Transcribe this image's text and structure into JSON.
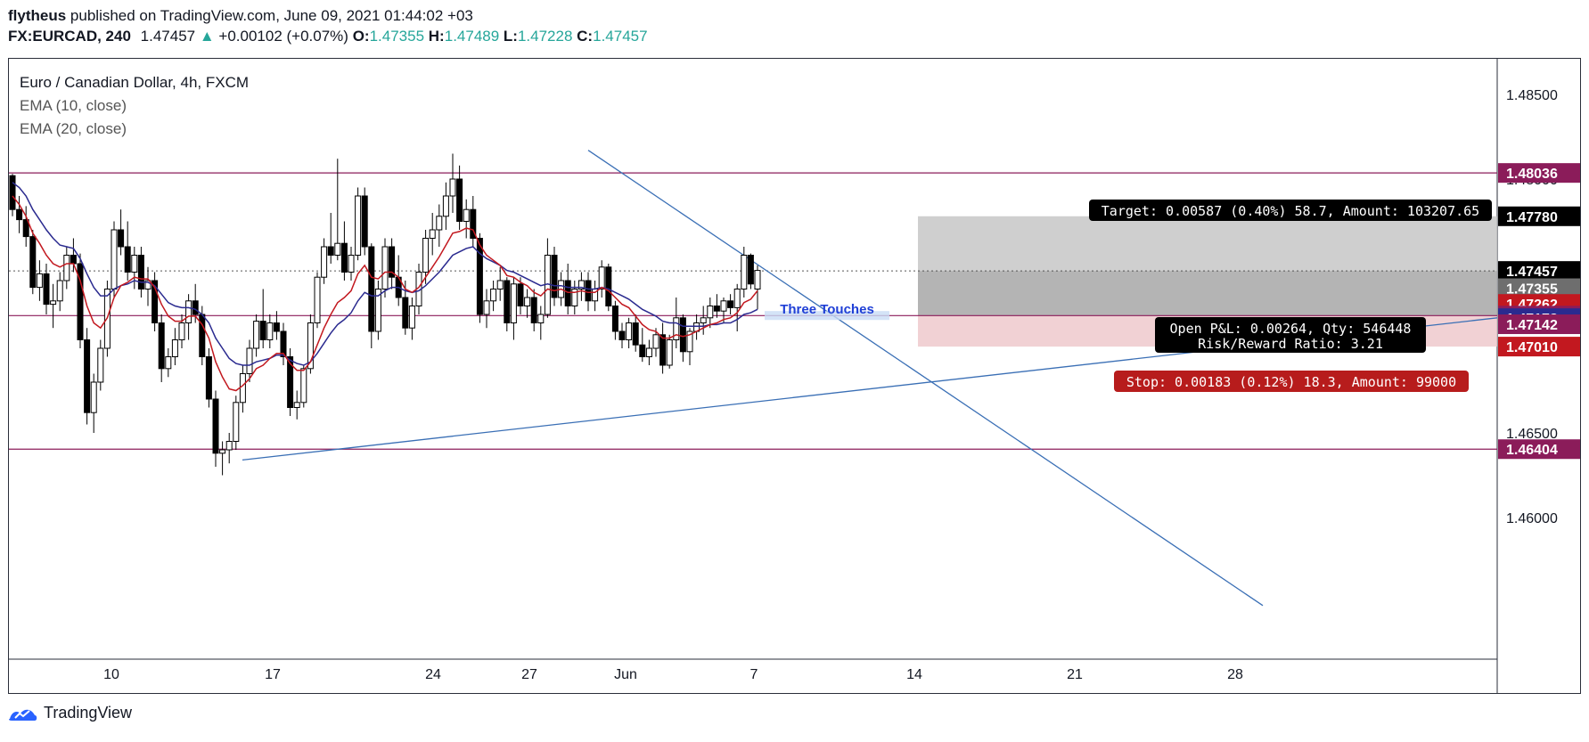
{
  "header": {
    "publisher": "flytheus",
    "published_text": "published on TradingView.com, June 09, 2021 01:44:02 +03",
    "symbol": "FX:EURCAD, 240",
    "last": "1.47457",
    "change": "+0.00102 (+0.07%)",
    "o_label": "O:",
    "o": "1.47355",
    "h_label": "H:",
    "h": "1.47489",
    "l_label": "L:",
    "l": "1.47228",
    "c_label": "C:",
    "c": "1.47457"
  },
  "legend": {
    "title": "Euro / Canadian Dollar, 4h, FXCM",
    "ema1": "EMA (10, close)",
    "ema2": "EMA (20, close)"
  },
  "footer": {
    "brand": "TradingView"
  },
  "colors": {
    "up_candle": "#ffffff",
    "down_candle": "#000000",
    "ema10": "#c2181f",
    "ema20": "#2a2a8f",
    "hline": "#8b1c5a",
    "trendline": "#3a6fb5",
    "accent_green": "#26a69a"
  },
  "chart_data": {
    "type": "candlestick",
    "title": "Euro / Canadian Dollar, 4h, FXCM",
    "ylim": [
      1.4545,
      1.4866
    ],
    "y_ticks": [
      1.485,
      1.48,
      1.465,
      1.46
    ],
    "x_ticks": [
      {
        "label": "10",
        "x": 125
      },
      {
        "label": "17",
        "x": 306
      },
      {
        "label": "24",
        "x": 486
      },
      {
        "label": "27",
        "x": 594
      },
      {
        "label": "Jun",
        "x": 702
      },
      {
        "label": "7",
        "x": 846
      },
      {
        "label": "14",
        "x": 1026
      },
      {
        "label": "21",
        "x": 1206
      },
      {
        "label": "28",
        "x": 1386
      }
    ],
    "candles": [
      [
        1.4802,
        1.4803,
        1.4778,
        1.4782
      ],
      [
        1.4782,
        1.479,
        1.4768,
        1.4776
      ],
      [
        1.4776,
        1.4784,
        1.476,
        1.4766
      ],
      [
        1.4766,
        1.477,
        1.4732,
        1.4736
      ],
      [
        1.4736,
        1.4752,
        1.4728,
        1.4744
      ],
      [
        1.4744,
        1.475,
        1.472,
        1.4726
      ],
      [
        1.4726,
        1.4738,
        1.4712,
        1.4728
      ],
      [
        1.4728,
        1.4745,
        1.4722,
        1.474
      ],
      [
        1.474,
        1.476,
        1.4735,
        1.4755
      ],
      [
        1.4755,
        1.4765,
        1.4745,
        1.475
      ],
      [
        1.475,
        1.4756,
        1.47,
        1.4705
      ],
      [
        1.4705,
        1.4712,
        1.4655,
        1.4662
      ],
      [
        1.4662,
        1.4685,
        1.465,
        1.468
      ],
      [
        1.468,
        1.4705,
        1.4675,
        1.47
      ],
      [
        1.47,
        1.474,
        1.4695,
        1.4735
      ],
      [
        1.4735,
        1.4775,
        1.473,
        1.477
      ],
      [
        1.477,
        1.4782,
        1.4755,
        1.476
      ],
      [
        1.476,
        1.4775,
        1.474,
        1.4745
      ],
      [
        1.4745,
        1.476,
        1.4735,
        1.4755
      ],
      [
        1.4755,
        1.476,
        1.473,
        1.4735
      ],
      [
        1.4735,
        1.4748,
        1.4725,
        1.474
      ],
      [
        1.474,
        1.4745,
        1.471,
        1.4715
      ],
      [
        1.4715,
        1.472,
        1.468,
        1.4688
      ],
      [
        1.4688,
        1.47,
        1.4683,
        1.4695
      ],
      [
        1.4695,
        1.4712,
        1.469,
        1.4705
      ],
      [
        1.4705,
        1.472,
        1.47,
        1.4715
      ],
      [
        1.4715,
        1.4732,
        1.4705,
        1.4728
      ],
      [
        1.4728,
        1.4738,
        1.4715,
        1.472
      ],
      [
        1.472,
        1.4725,
        1.469,
        1.4695
      ],
      [
        1.4695,
        1.47,
        1.4665,
        1.467
      ],
      [
        1.467,
        1.4675,
        1.463,
        1.4638
      ],
      [
        1.4638,
        1.4645,
        1.4625,
        1.464
      ],
      [
        1.464,
        1.465,
        1.4632,
        1.4645
      ],
      [
        1.4645,
        1.4672,
        1.464,
        1.4668
      ],
      [
        1.4668,
        1.469,
        1.4662,
        1.4685
      ],
      [
        1.4685,
        1.4705,
        1.468,
        1.47
      ],
      [
        1.47,
        1.472,
        1.4695,
        1.4716
      ],
      [
        1.4716,
        1.4735,
        1.47,
        1.4705
      ],
      [
        1.4705,
        1.472,
        1.47,
        1.4715
      ],
      [
        1.4715,
        1.4722,
        1.4705,
        1.471
      ],
      [
        1.471,
        1.4715,
        1.469,
        1.4695
      ],
      [
        1.4695,
        1.47,
        1.466,
        1.4665
      ],
      [
        1.4665,
        1.4675,
        1.4658,
        1.4668
      ],
      [
        1.4668,
        1.469,
        1.4665,
        1.4688
      ],
      [
        1.4688,
        1.472,
        1.4685,
        1.4715
      ],
      [
        1.4715,
        1.4745,
        1.4712,
        1.4742
      ],
      [
        1.4742,
        1.4765,
        1.4738,
        1.476
      ],
      [
        1.476,
        1.478,
        1.475,
        1.4755
      ],
      [
        1.4755,
        1.4812,
        1.4752,
        1.4762
      ],
      [
        1.4762,
        1.4775,
        1.474,
        1.4745
      ],
      [
        1.4745,
        1.476,
        1.474,
        1.4755
      ],
      [
        1.4755,
        1.4795,
        1.4752,
        1.479
      ],
      [
        1.479,
        1.4795,
        1.4755,
        1.476
      ],
      [
        1.476,
        1.4762,
        1.47,
        1.471
      ],
      [
        1.471,
        1.474,
        1.4705,
        1.4735
      ],
      [
        1.4735,
        1.4765,
        1.473,
        1.476
      ],
      [
        1.476,
        1.4765,
        1.4735,
        1.4742
      ],
      [
        1.4742,
        1.4755,
        1.4725,
        1.473
      ],
      [
        1.473,
        1.474,
        1.4708,
        1.4712
      ],
      [
        1.4712,
        1.473,
        1.4705,
        1.4725
      ],
      [
        1.4725,
        1.475,
        1.472,
        1.4745
      ],
      [
        1.4745,
        1.477,
        1.4738,
        1.4765
      ],
      [
        1.4765,
        1.478,
        1.4755,
        1.477
      ],
      [
        1.477,
        1.4785,
        1.476,
        1.4778
      ],
      [
        1.4778,
        1.4798,
        1.477,
        1.479
      ],
      [
        1.479,
        1.4815,
        1.478,
        1.48
      ],
      [
        1.48,
        1.4808,
        1.477,
        1.4775
      ],
      [
        1.4775,
        1.4788,
        1.4765,
        1.4782
      ],
      [
        1.4782,
        1.479,
        1.476,
        1.4765
      ],
      [
        1.4765,
        1.4768,
        1.4715,
        1.472
      ],
      [
        1.472,
        1.4735,
        1.4712,
        1.4728
      ],
      [
        1.4728,
        1.474,
        1.4722,
        1.4735
      ],
      [
        1.4735,
        1.4748,
        1.4728,
        1.474
      ],
      [
        1.474,
        1.4742,
        1.471,
        1.4715
      ],
      [
        1.4715,
        1.4742,
        1.4705,
        1.4738
      ],
      [
        1.4738,
        1.4742,
        1.472,
        1.4725
      ],
      [
        1.4725,
        1.4735,
        1.4718,
        1.473
      ],
      [
        1.473,
        1.4735,
        1.471,
        1.4715
      ],
      [
        1.4715,
        1.4725,
        1.4705,
        1.472
      ],
      [
        1.472,
        1.4765,
        1.4718,
        1.4755
      ],
      [
        1.4755,
        1.476,
        1.4725,
        1.473
      ],
      [
        1.473,
        1.4745,
        1.4725,
        1.474
      ],
      [
        1.474,
        1.475,
        1.472,
        1.4725
      ],
      [
        1.4725,
        1.474,
        1.472,
        1.4735
      ],
      [
        1.4735,
        1.4745,
        1.4728,
        1.474
      ],
      [
        1.474,
        1.4745,
        1.4722,
        1.4728
      ],
      [
        1.4728,
        1.474,
        1.4722,
        1.4735
      ],
      [
        1.4735,
        1.4752,
        1.473,
        1.4748
      ],
      [
        1.4748,
        1.475,
        1.4722,
        1.4725
      ],
      [
        1.4725,
        1.4728,
        1.4705,
        1.471
      ],
      [
        1.471,
        1.4715,
        1.47,
        1.4705
      ],
      [
        1.4705,
        1.4718,
        1.47,
        1.4715
      ],
      [
        1.4715,
        1.472,
        1.4698,
        1.4702
      ],
      [
        1.4702,
        1.4712,
        1.4692,
        1.4695
      ],
      [
        1.4695,
        1.4705,
        1.469,
        1.47
      ],
      [
        1.47,
        1.4712,
        1.4695,
        1.4708
      ],
      [
        1.4708,
        1.4715,
        1.4685,
        1.469
      ],
      [
        1.469,
        1.4708,
        1.4688,
        1.4705
      ],
      [
        1.4705,
        1.473,
        1.47,
        1.4718
      ],
      [
        1.4718,
        1.472,
        1.4692,
        1.4698
      ],
      [
        1.4698,
        1.4712,
        1.469,
        1.471
      ],
      [
        1.471,
        1.472,
        1.4705,
        1.4715
      ],
      [
        1.4715,
        1.4725,
        1.4708,
        1.4718
      ],
      [
        1.4718,
        1.473,
        1.4712,
        1.4725
      ],
      [
        1.4725,
        1.4732,
        1.4718,
        1.4722
      ],
      [
        1.4722,
        1.473,
        1.4715,
        1.4728
      ],
      [
        1.4728,
        1.4732,
        1.472,
        1.4724
      ],
      [
        1.4724,
        1.4738,
        1.471,
        1.4735
      ],
      [
        1.4735,
        1.476,
        1.473,
        1.4755
      ],
      [
        1.4755,
        1.4756,
        1.4735,
        1.4738
      ],
      [
        1.4735,
        1.4749,
        1.4723,
        1.4746
      ]
    ],
    "ema10": [
      1.479,
      1.4785,
      1.4778,
      1.4768,
      1.4762,
      1.4755,
      1.475,
      1.4748,
      1.475,
      1.475,
      1.474,
      1.4725,
      1.4715,
      1.4712,
      1.4718,
      1.473,
      1.4737,
      1.4739,
      1.4742,
      1.4741,
      1.4741,
      1.4736,
      1.4726,
      1.4719,
      1.4716,
      1.4716,
      1.4719,
      1.4719,
      1.4714,
      1.4706,
      1.4692,
      1.4683,
      1.4676,
      1.4675,
      1.4678,
      1.4682,
      1.4688,
      1.469,
      1.4694,
      1.4697,
      1.4697,
      1.4691,
      1.4687,
      1.4687,
      1.4692,
      1.4702,
      1.4712,
      1.472,
      1.4727,
      1.473,
      1.4734,
      1.4744,
      1.4749,
      1.4742,
      1.4741,
      1.4745,
      1.4745,
      1.4742,
      1.4735,
      1.4733,
      1.4736,
      1.4742,
      1.4748,
      1.4754,
      1.4761,
      1.4768,
      1.4769,
      1.4771,
      1.477,
      1.4761,
      1.4755,
      1.4752,
      1.4749,
      1.4743,
      1.4742,
      1.4739,
      1.4737,
      1.4733,
      1.4731,
      1.4735,
      1.4734,
      1.4735,
      1.4733,
      1.4733,
      1.4734,
      1.4733,
      1.4733,
      1.4736,
      1.4734,
      1.473,
      1.4726,
      1.4724,
      1.4719,
      1.4714,
      1.4711,
      1.471,
      1.4706,
      1.4706,
      1.4708,
      1.4707,
      1.4708,
      1.471,
      1.4712,
      1.4714,
      1.4715,
      1.4717,
      1.4718,
      1.4721,
      1.4727,
      1.4729,
      1.4734
    ],
    "ema20": [
      1.4798,
      1.4795,
      1.479,
      1.4782,
      1.4776,
      1.477,
      1.4765,
      1.4761,
      1.476,
      1.4759,
      1.4753,
      1.4744,
      1.4736,
      1.4731,
      1.4731,
      1.4735,
      1.4737,
      1.4738,
      1.474,
      1.4739,
      1.4739,
      1.4737,
      1.4732,
      1.4727,
      1.4725,
      1.4724,
      1.4724,
      1.4723,
      1.472,
      1.4715,
      1.4706,
      1.47,
      1.4694,
      1.4691,
      1.469,
      1.469,
      1.4692,
      1.4693,
      1.4694,
      1.4696,
      1.4696,
      1.4693,
      1.4691,
      1.469,
      1.4692,
      1.4697,
      1.4703,
      1.4709,
      1.4714,
      1.4717,
      1.4721,
      1.4728,
      1.4733,
      1.4731,
      1.4731,
      1.4734,
      1.4736,
      1.4736,
      1.4734,
      1.4733,
      1.4734,
      1.4737,
      1.4741,
      1.4745,
      1.475,
      1.4755,
      1.4757,
      1.4759,
      1.476,
      1.4756,
      1.4753,
      1.4751,
      1.4749,
      1.4746,
      1.4745,
      1.4743,
      1.4741,
      1.4739,
      1.4737,
      1.4738,
      1.4737,
      1.4737,
      1.4736,
      1.4736,
      1.4736,
      1.4735,
      1.4735,
      1.4736,
      1.4735,
      1.4733,
      1.4731,
      1.4729,
      1.4726,
      1.4723,
      1.4721,
      1.4719,
      1.4716,
      1.4715,
      1.4715,
      1.4713,
      1.4713,
      1.4713,
      1.4713,
      1.4714,
      1.4714,
      1.4715,
      1.4715,
      1.4717,
      1.472,
      1.4721,
      1.4723
    ],
    "horizontal_levels": [
      1.48036,
      1.47193,
      1.46404
    ],
    "price_labels": [
      {
        "text": "1.48036",
        "value": 1.48036,
        "bg": "#8b1c5a",
        "fg": "#ffffff"
      },
      {
        "text": "1.47780",
        "value": 1.4778,
        "bg": "#000000",
        "fg": "#ffffff"
      },
      {
        "text": "1.47457",
        "value": 1.47457,
        "bg": "#000000",
        "fg": "#ffffff"
      },
      {
        "text": "1.47355",
        "value": 1.47355,
        "bg": "#6e6e6e",
        "fg": "#ffffff"
      },
      {
        "text": "1.47262",
        "value": 1.47262,
        "bg": "#c2181f",
        "fg": "#ffffff"
      },
      {
        "text": "1.47193",
        "value": 1.47193,
        "bg": "#8b1c5a",
        "fg": "#ffffff"
      },
      {
        "text": "1.47178",
        "value": 1.47178,
        "bg": "#2a2a8f",
        "fg": "#ffffff"
      },
      {
        "text": "1.47142",
        "value": 1.47142,
        "bg": "#8b1c5a",
        "fg": "#ffffff"
      },
      {
        "text": "1.47010",
        "value": 1.4701,
        "bg": "#c2181f",
        "fg": "#ffffff"
      },
      {
        "text": "1.46404",
        "value": 1.46404,
        "bg": "#8b1c5a",
        "fg": "#ffffff"
      }
    ],
    "annotations": {
      "three_touches": "Three Touches",
      "target": "Target: 0.00587 (0.40%) 58.7, Amount: 103207.65",
      "open_pnl": "Open P&L: 0.00264, Qty: 546448",
      "rr": "Risk/Reward Ratio: 3.21",
      "stop": "Stop: 0.00183 (0.12%) 18.3, Amount: 99000"
    },
    "position": {
      "entry": 1.47193,
      "target": 1.4778,
      "stop": 1.4701
    }
  }
}
